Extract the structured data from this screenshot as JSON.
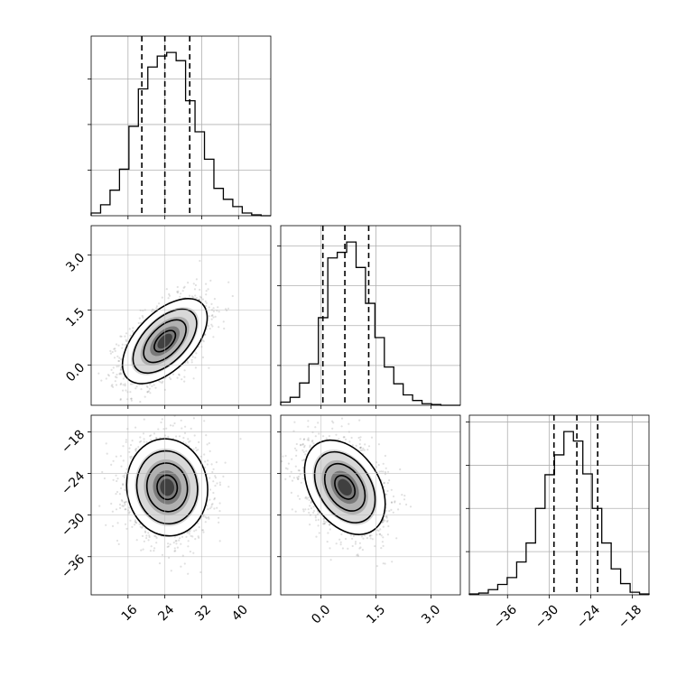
{
  "chart_data": {
    "type": "corner",
    "grid": true,
    "quantile_lines": "dashed",
    "parameters": [
      {
        "range": [
          8,
          47
        ],
        "ticks": [
          16,
          24,
          32,
          40
        ],
        "tick_labels": [
          "16",
          "24",
          "32",
          "40"
        ],
        "quantiles": [
          19.0,
          24.0,
          29.4
        ]
      },
      {
        "range": [
          -1.1,
          3.8
        ],
        "ticks": [
          0.0,
          1.5,
          3.0
        ],
        "tick_labels": [
          "0.0",
          "1.5",
          "3.0"
        ],
        "quantiles": [
          0.05,
          0.65,
          1.3
        ]
      },
      {
        "range": [
          -41.5,
          -15.6
        ],
        "ticks": [
          -36,
          -30,
          -24,
          -18
        ],
        "tick_labels": [
          "−36",
          "−30",
          "−24",
          "−18"
        ],
        "quantiles": [
          -29.3,
          -26.0,
          -23.0
        ]
      }
    ],
    "histograms": [
      {
        "parameter": 0,
        "bin_edges": [
          8.0,
          10.05,
          12.1,
          14.15,
          16.2,
          18.25,
          20.3,
          22.35,
          24.4,
          26.45,
          28.5,
          30.55,
          32.6,
          34.65,
          36.7,
          38.75,
          40.8,
          42.85,
          44.9,
          47.0
        ],
        "counts": [
          3,
          12,
          28,
          51,
          98,
          139,
          163,
          175,
          179,
          170,
          126,
          92,
          62,
          30,
          18,
          10,
          3,
          1,
          0
        ]
      },
      {
        "parameter": 1,
        "bin_edges": [
          -1.1,
          -0.843,
          -0.586,
          -0.329,
          -0.072,
          0.185,
          0.442,
          0.699,
          0.956,
          1.213,
          1.47,
          1.727,
          1.984,
          2.241,
          2.498,
          2.755,
          3.012,
          3.269,
          3.526,
          3.8
        ],
        "counts": [
          4,
          10,
          28,
          52,
          110,
          185,
          192,
          205,
          173,
          128,
          85,
          48,
          27,
          13,
          6,
          2,
          1,
          0,
          0
        ]
      },
      {
        "parameter": 2,
        "bin_edges": [
          -41.5,
          -40.14,
          -38.77,
          -37.41,
          -36.05,
          -34.68,
          -33.32,
          -31.96,
          -30.59,
          -29.23,
          -27.87,
          -26.5,
          -25.14,
          -23.78,
          -22.41,
          -21.05,
          -19.69,
          -18.32,
          -16.96,
          -15.6
        ],
        "counts": [
          1,
          2,
          6,
          12,
          20,
          38,
          60,
          100,
          139,
          162,
          189,
          178,
          140,
          100,
          60,
          30,
          13,
          3,
          1
        ]
      }
    ],
    "pairs": [
      {
        "x_param": 0,
        "y_param": 1,
        "center": [
          24.0,
          0.65
        ],
        "sd": [
          4.6,
          0.58
        ],
        "correlation": 0.55,
        "contour_levels_sigma": [
          0.5,
          1.0,
          1.5,
          2.0
        ]
      },
      {
        "x_param": 0,
        "y_param": 2,
        "center": [
          24.5,
          -26.0
        ],
        "sd": [
          4.4,
          3.5
        ],
        "correlation": -0.05,
        "contour_levels_sigma": [
          0.5,
          1.0,
          1.5,
          2.0
        ]
      },
      {
        "x_param": 1,
        "y_param": 2,
        "center": [
          0.65,
          -26.0
        ],
        "sd": [
          0.55,
          3.4
        ],
        "correlation": -0.35,
        "contour_levels_sigma": [
          0.5,
          1.0,
          1.5,
          2.0
        ]
      }
    ]
  }
}
